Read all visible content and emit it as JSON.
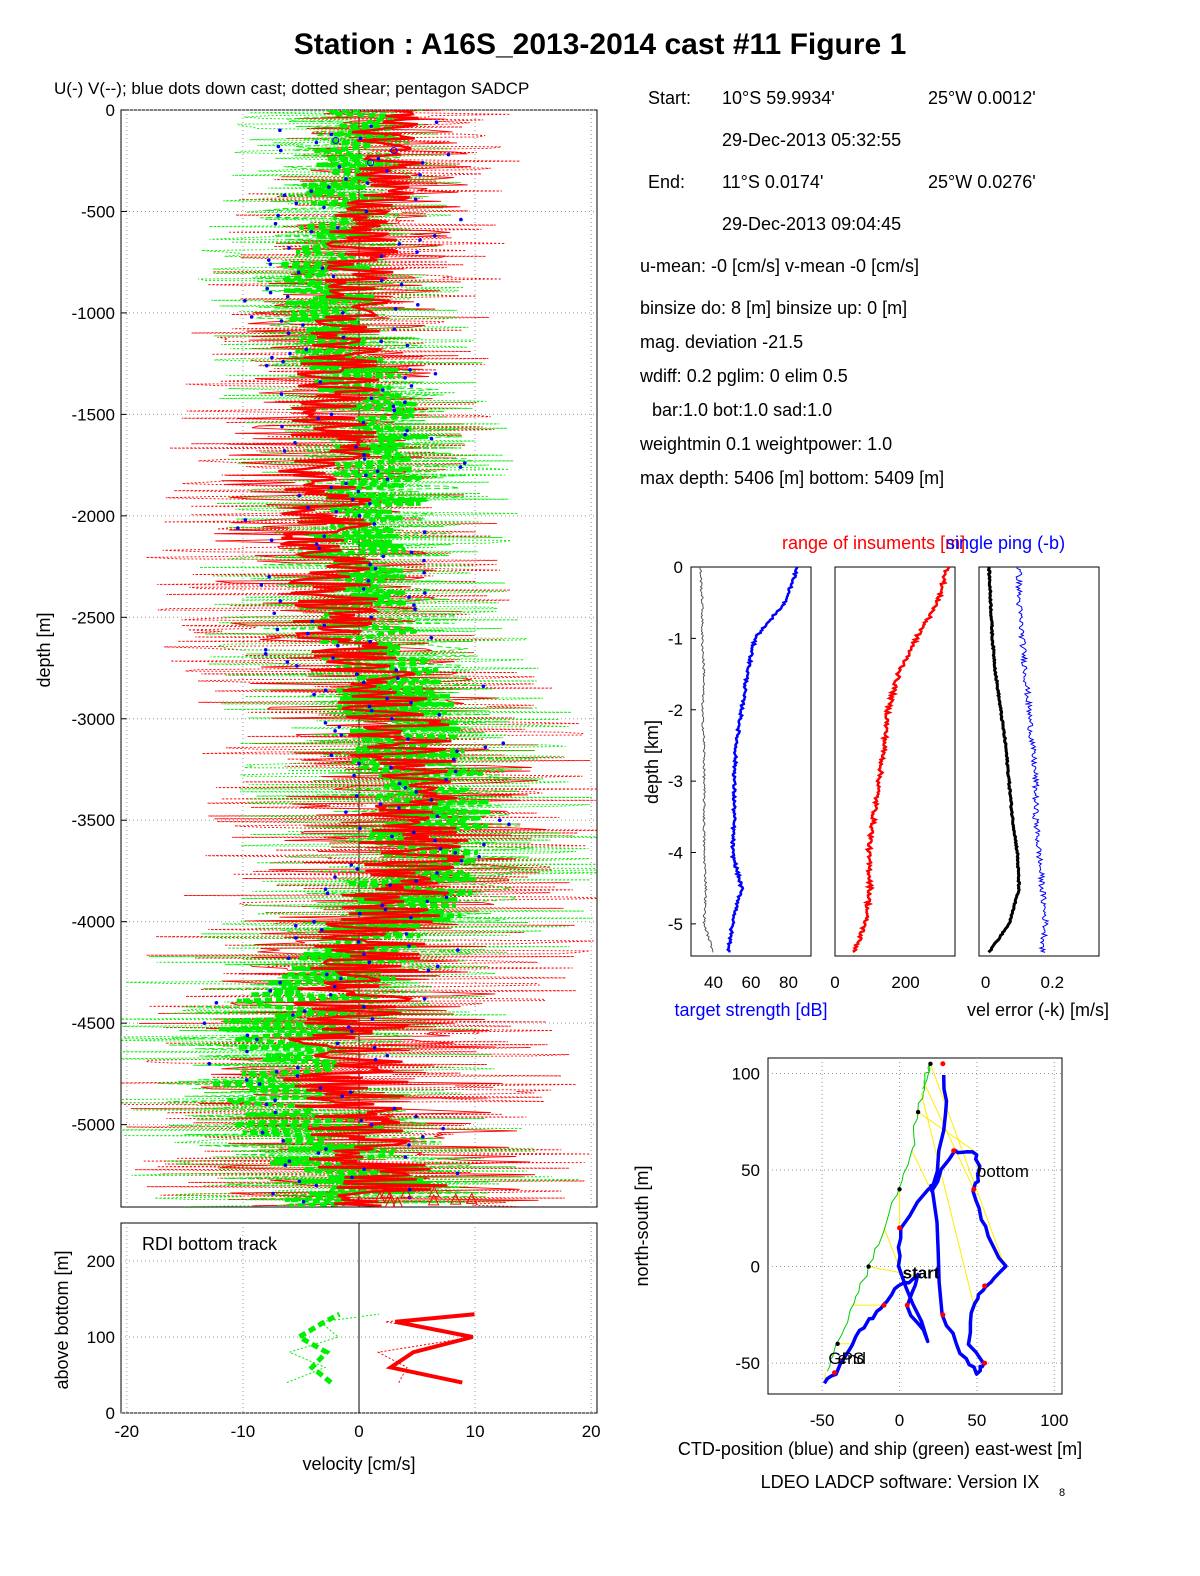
{
  "title": "Station : A16S_2013-2014 cast #11  Figure 1",
  "info": {
    "start_label": "Start:",
    "start_lat": "10°S 59.9934'",
    "start_lon": "25°W  0.0012'",
    "start_time": "29-Dec-2013 05:32:55",
    "end_label": "End:",
    "end_lat": "11°S  0.0174'",
    "end_lon": "25°W  0.0276'",
    "end_time": "29-Dec-2013 09:04:45",
    "line1": "u-mean:  -0 [cm/s]    v-mean  -0 [cm/s]",
    "line2": "binsize do: 8 [m]  binsize up:  0 [m]",
    "line3": "mag. deviation -21.5",
    "line4": "wdiff: 0.2  pglim: 0  elim 0.5",
    "line5": "bar:1.0 bot:1.0 sad:1.0",
    "line6": "weightmin 0.1  weightpower: 1.0",
    "line7": "max depth: 5406 [m]   bottom: 5409 [m]"
  },
  "colors": {
    "u": "#ff0000",
    "v": "#00ee00",
    "downcast": "#0000ff",
    "ctd": "#0000ff",
    "ship": "#00cc00",
    "link": "#ffee00"
  },
  "chart_data": [
    {
      "type": "line",
      "name": "velocity-profile",
      "title": "U(-) V(--); blue dots down cast; dotted shear; pentagon SADCP",
      "xlabel": "",
      "ylabel": "depth [m]",
      "xlim": [
        -20.5,
        20.5
      ],
      "ylim": [
        -5406,
        0
      ],
      "yticks": [
        "0",
        "-500",
        "-1000",
        "-1500",
        "-2000",
        "-2500",
        "-3000",
        "-3500",
        "-4000",
        "-4500",
        "-5000"
      ],
      "ytick_values": [
        0,
        -500,
        -1000,
        -1500,
        -2000,
        -2500,
        -3000,
        -3500,
        -4000,
        -4500,
        -5000
      ],
      "grid": "dotted",
      "depth": [
        0,
        250,
        500,
        750,
        1000,
        1250,
        1500,
        1750,
        2000,
        2250,
        2500,
        2750,
        3000,
        3250,
        3500,
        3750,
        4000,
        4250,
        4500,
        4750,
        5000,
        5250,
        5400
      ],
      "series": [
        {
          "name": "U",
          "values": [
            2,
            3,
            1,
            0,
            -1,
            -2,
            -2,
            -3,
            -3,
            -3,
            -2,
            0,
            3,
            4,
            5,
            4,
            2,
            0,
            -1,
            -1,
            0,
            2,
            3
          ]
        },
        {
          "name": "V",
          "values": [
            0,
            -1,
            -2,
            -3,
            -2,
            -1,
            1,
            2,
            1,
            -1,
            0,
            2,
            4,
            5,
            6,
            5,
            3,
            -2,
            -6,
            -7,
            -5,
            0,
            0
          ]
        }
      ]
    },
    {
      "type": "line",
      "name": "bottom-track",
      "title": "RDI bottom track",
      "xlabel": "velocity [cm/s]",
      "ylabel": "above bottom [m]",
      "xlim": [
        -20.5,
        20.5
      ],
      "ylim": [
        0,
        250
      ],
      "xticks": [
        "-20",
        "-10",
        "0",
        "10",
        "20"
      ],
      "xtick_values": [
        -20,
        -10,
        0,
        10,
        20
      ],
      "yticks": [
        "0",
        "100",
        "200"
      ],
      "ytick_values": [
        0,
        100,
        200
      ],
      "height": [
        40,
        60,
        80,
        100,
        120,
        130
      ],
      "series": [
        {
          "name": "U",
          "values": [
            9,
            3,
            5,
            10,
            3,
            10
          ]
        },
        {
          "name": "V",
          "values": [
            -2,
            -4,
            -3,
            -5,
            -3,
            -2
          ]
        }
      ]
    },
    {
      "type": "line",
      "name": "instrument-diagnostics",
      "title": "range of insuments [m]",
      "title2": "single ping (-b)",
      "ylabel": "depth [km]",
      "yticks": [
        "0",
        "-1",
        "-2",
        "-3",
        "-4",
        "-5"
      ],
      "ytick_values": [
        0,
        -1,
        -2,
        -3,
        -4,
        -5
      ],
      "ylim": [
        -5.45,
        0
      ],
      "panels": [
        {
          "xlabel": "target strength [dB]",
          "xticks": [
            "40",
            "60",
            "80"
          ],
          "xtick_values": [
            40,
            60,
            80
          ],
          "xlim": [
            28,
            92
          ]
        },
        {
          "xlabel": "",
          "xticks": [
            "0",
            "200"
          ],
          "xtick_values": [
            0,
            200
          ],
          "xlim": [
            0,
            340
          ]
        },
        {
          "xlabel": "vel error (-k) [m/s]",
          "xticks": [
            "0",
            "0.2"
          ],
          "xtick_values": [
            0,
            0.2
          ],
          "xlim": [
            -0.02,
            0.34
          ]
        }
      ],
      "depth": [
        0,
        0.5,
        1,
        1.5,
        2,
        2.5,
        3,
        3.5,
        4,
        4.5,
        5,
        5.4
      ],
      "series": [
        {
          "name": "target strength",
          "values": [
            85,
            78,
            62,
            58,
            55,
            52,
            51,
            51,
            50,
            55,
            50,
            48
          ]
        },
        {
          "name": "target strength (secondary)",
          "values": [
            33,
            34,
            34,
            35,
            34,
            35,
            35,
            35,
            35,
            36,
            35,
            40
          ]
        },
        {
          "name": "range",
          "values": [
            320,
            290,
            230,
            180,
            150,
            140,
            125,
            110,
            95,
            100,
            85,
            55
          ]
        },
        {
          "name": "vel error",
          "values": [
            0.01,
            0.015,
            0.02,
            0.03,
            0.045,
            0.06,
            0.07,
            0.08,
            0.095,
            0.1,
            0.07,
            0.01
          ]
        },
        {
          "name": "single ping",
          "values": [
            0.1,
            0.1,
            0.11,
            0.12,
            0.13,
            0.14,
            0.15,
            0.15,
            0.16,
            0.17,
            0.18,
            0.17
          ]
        }
      ]
    },
    {
      "type": "line",
      "name": "position-track",
      "xlabel": "CTD-position (blue) and ship (green) east-west [m]",
      "ylabel": "north-south [m]",
      "xlim": [
        -85,
        105
      ],
      "ylim": [
        -66,
        108
      ],
      "xticks": [
        "-50",
        "0",
        "50",
        "100"
      ],
      "xtick_values": [
        -50,
        0,
        50,
        100
      ],
      "yticks": [
        "-50",
        "0",
        "50",
        "100"
      ],
      "ytick_values": [
        -50,
        0,
        50,
        100
      ],
      "annotations": [
        "bottom",
        "start",
        "GPS",
        "end"
      ],
      "series": [
        {
          "name": "CTD",
          "x": [
            -48,
            -42,
            -30,
            -20,
            -10,
            0,
            12,
            5,
            18,
            0,
            0,
            25,
            20,
            35,
            48,
            52,
            48,
            55,
            68,
            55,
            48,
            45,
            55,
            50,
            40,
            28,
            22,
            30,
            28
          ],
          "y": [
            -60,
            -55,
            -40,
            -28,
            -20,
            -10,
            -5,
            -20,
            -38,
            0,
            20,
            45,
            40,
            60,
            60,
            50,
            40,
            20,
            0,
            -10,
            -20,
            -40,
            -50,
            -55,
            -45,
            -25,
            40,
            80,
            105
          ]
        },
        {
          "name": "ship",
          "x": [
            -48,
            -40,
            -30,
            -20,
            -10,
            0,
            8,
            12,
            16,
            20,
            14
          ],
          "y": [
            -55,
            -40,
            -20,
            0,
            20,
            40,
            60,
            80,
            95,
            105,
            90
          ]
        }
      ]
    }
  ],
  "footer": "LDEO LADCP software: Version IX",
  "footer_sub": "8"
}
